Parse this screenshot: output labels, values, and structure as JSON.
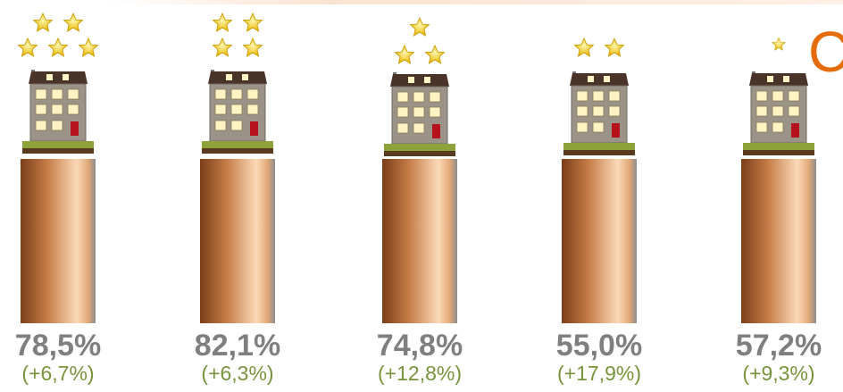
{
  "heading": "C",
  "columns": [
    {
      "stars": 5,
      "value": "78,5%",
      "change": "(+6,7%)"
    },
    {
      "stars": 4,
      "value": "82,1%",
      "change": "(+6,3%)"
    },
    {
      "stars": 3,
      "value": "74,8%",
      "change": "(+12,8%)"
    },
    {
      "stars": 2,
      "value": "55,0%",
      "change": "(+17,9%)"
    },
    {
      "stars": 1,
      "value": "57,2%",
      "change": "(+9,3%)"
    }
  ]
}
